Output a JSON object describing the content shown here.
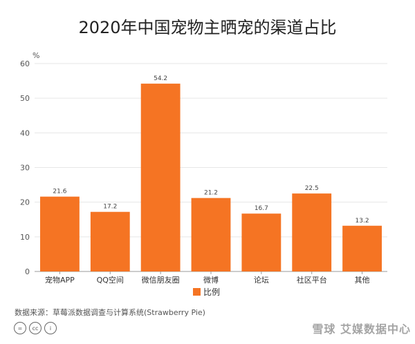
{
  "chart_data": {
    "type": "bar",
    "title": "2020年中国宠物主晒宠的渠道占比",
    "ylabel": "%",
    "ylim": [
      0,
      60
    ],
    "yticks": [
      0,
      10,
      20,
      30,
      40,
      50,
      60
    ],
    "grid": true,
    "categories": [
      "宠物APP",
      "QQ空间",
      "微信朋友圈",
      "微博",
      "论坛",
      "社区平台",
      "其他"
    ],
    "series": [
      {
        "name": "比例",
        "values": [
          21.6,
          17.2,
          54.2,
          21.2,
          16.7,
          22.5,
          13.2
        ],
        "color": "#f57423"
      }
    ],
    "data_labels": [
      "21.6",
      "17.2",
      "54.2",
      "21.2",
      "16.7",
      "22.5",
      "13.2"
    ],
    "legend": {
      "position": "bottom-center",
      "label": "比例"
    }
  },
  "source": "数据来源：草莓派数据调查与计算系统(Strawberry Pie)",
  "license_icons": [
    "cc-icon",
    "cc-by-icon",
    "cc-person-icon"
  ],
  "license_text": [
    "=",
    "cc",
    "i"
  ],
  "watermark": "雪球 艾媒数据中心"
}
